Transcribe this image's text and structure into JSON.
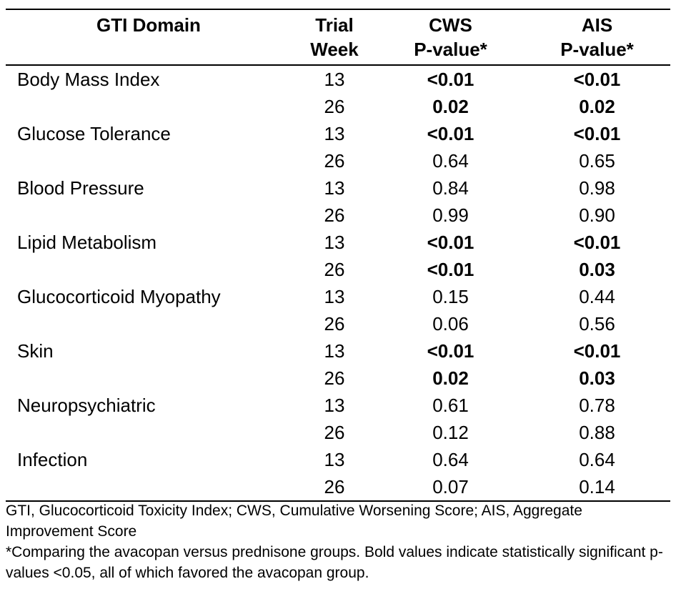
{
  "table": {
    "headers": {
      "domain": "GTI Domain",
      "week_line1": "Trial",
      "week_line2": "Week",
      "cws_line1": "CWS",
      "cws_line2": "P-value*",
      "ais_line1": "AIS",
      "ais_line2": "P-value*"
    },
    "rows": [
      {
        "domain": "Body Mass Index",
        "week": "13",
        "cws": "<0.01",
        "cws_bold": true,
        "ais": "<0.01",
        "ais_bold": true
      },
      {
        "domain": "",
        "week": "26",
        "cws": "0.02",
        "cws_bold": true,
        "ais": "0.02",
        "ais_bold": true
      },
      {
        "domain": "Glucose Tolerance",
        "week": "13",
        "cws": "<0.01",
        "cws_bold": true,
        "ais": "<0.01",
        "ais_bold": true
      },
      {
        "domain": "",
        "week": "26",
        "cws": "0.64",
        "cws_bold": false,
        "ais": "0.65",
        "ais_bold": false
      },
      {
        "domain": "Blood Pressure",
        "week": "13",
        "cws": "0.84",
        "cws_bold": false,
        "ais": "0.98",
        "ais_bold": false
      },
      {
        "domain": "",
        "week": "26",
        "cws": "0.99",
        "cws_bold": false,
        "ais": "0.90",
        "ais_bold": false
      },
      {
        "domain": "Lipid Metabolism",
        "week": "13",
        "cws": "<0.01",
        "cws_bold": true,
        "ais": "<0.01",
        "ais_bold": true
      },
      {
        "domain": "",
        "week": "26",
        "cws": "<0.01",
        "cws_bold": true,
        "ais": "0.03",
        "ais_bold": true
      },
      {
        "domain": "Glucocorticoid Myopathy",
        "week": "13",
        "cws": "0.15",
        "cws_bold": false,
        "ais": "0.44",
        "ais_bold": false
      },
      {
        "domain": "",
        "week": "26",
        "cws": "0.06",
        "cws_bold": false,
        "ais": "0.56",
        "ais_bold": false
      },
      {
        "domain": "Skin",
        "week": "13",
        "cws": "<0.01",
        "cws_bold": true,
        "ais": "<0.01",
        "ais_bold": true
      },
      {
        "domain": "",
        "week": "26",
        "cws": "0.02",
        "cws_bold": true,
        "ais": "0.03",
        "ais_bold": true
      },
      {
        "domain": "Neuropsychiatric",
        "week": "13",
        "cws": "0.61",
        "cws_bold": false,
        "ais": "0.78",
        "ais_bold": false
      },
      {
        "domain": "",
        "week": "26",
        "cws": "0.12",
        "cws_bold": false,
        "ais": "0.88",
        "ais_bold": false
      },
      {
        "domain": "Infection",
        "week": "13",
        "cws": "0.64",
        "cws_bold": false,
        "ais": "0.64",
        "ais_bold": false
      },
      {
        "domain": "",
        "week": "26",
        "cws": "0.07",
        "cws_bold": false,
        "ais": "0.14",
        "ais_bold": false
      }
    ]
  },
  "notes": {
    "abbreviations": "GTI, Glucocorticoid Toxicity Index; CWS, Cumulative Worsening Score; AIS, Aggregate Improvement Score",
    "footnote": "*Comparing the avacopan versus prednisone groups. Bold values indicate statistically significant p-values <0.05, all of which favored the avacopan group."
  }
}
